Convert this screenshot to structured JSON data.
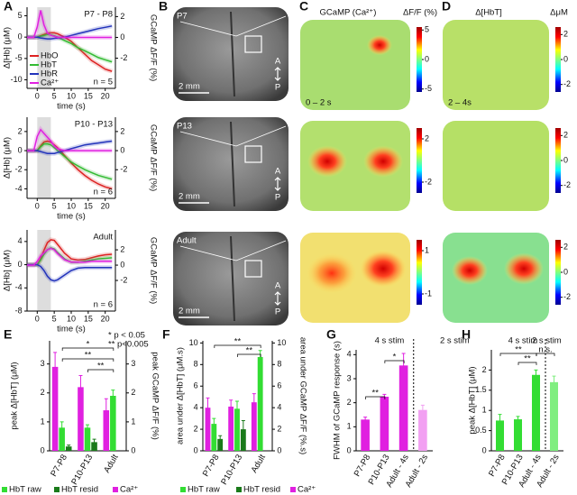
{
  "panel_labels": [
    "A",
    "B",
    "C",
    "D",
    "E",
    "F",
    "G",
    "H"
  ],
  "chart_data": [
    {
      "type": "line",
      "title": "P7 - P8",
      "annotation": "n = 5",
      "xlabel": "time (s)",
      "ylabel": "Δ[Hb] (μM)",
      "y2label": "GCaMP ΔF/F (%)",
      "shade": [
        0,
        4
      ],
      "x": [
        -3,
        -1,
        0,
        1,
        2,
        3,
        4,
        5,
        6,
        8,
        10,
        12,
        14,
        16,
        18,
        20,
        22
      ],
      "xlim": [
        -3,
        23
      ],
      "xticks": [
        0,
        5,
        10,
        15,
        20
      ],
      "ylim": [
        -12,
        7
      ],
      "yticks": [
        5,
        0,
        -5,
        -10
      ],
      "y2lim": [
        -4.9,
        2.9
      ],
      "y2ticks": [
        2,
        0,
        -2
      ],
      "legend": "lower left",
      "series": [
        {
          "name": "HbO",
          "color": "#dd2222",
          "values": [
            0,
            0,
            0,
            0.3,
            0.6,
            0.9,
            1,
            1,
            0.8,
            0,
            -1,
            -2.5,
            -4,
            -5.5,
            -6.5,
            -7.5,
            -8
          ]
        },
        {
          "name": "HbT",
          "color": "#33bb33",
          "values": [
            0,
            0,
            0,
            0.2,
            0.4,
            0.6,
            0.5,
            0.3,
            0,
            -0.8,
            -1.5,
            -2.5,
            -3.2,
            -4,
            -4.8,
            -5.3,
            -5.8
          ]
        },
        {
          "name": "HbR",
          "color": "#2233bb",
          "values": [
            0,
            0,
            0,
            -0.2,
            -0.3,
            -0.4,
            -0.4,
            -0.3,
            -0.2,
            0,
            0.4,
            0.8,
            1.2,
            1.6,
            2,
            2.3,
            2.6
          ]
        },
        {
          "name": "Ca²⁺",
          "color": "#e020e0",
          "axis": "y2",
          "values": [
            0,
            0,
            1,
            2.6,
            1.2,
            0.4,
            0.2,
            0.1,
            0,
            0,
            0,
            0,
            0,
            0,
            0,
            0,
            0
          ]
        }
      ]
    },
    {
      "type": "line",
      "title": "P10 - P13",
      "annotation": "n = 6",
      "xlabel": "time (s)",
      "ylabel": "Δ[Hb] (μM)",
      "y2label": "GCaMP ΔF/F (%)",
      "shade": [
        0,
        4
      ],
      "x": [
        -3,
        -1,
        0,
        1,
        2,
        3,
        4,
        5,
        6,
        8,
        10,
        12,
        14,
        16,
        18,
        20,
        22
      ],
      "xlim": [
        -3,
        23
      ],
      "xticks": [
        0,
        5,
        10,
        15,
        20
      ],
      "ylim": [
        -5,
        3.5
      ],
      "yticks": [
        2,
        0,
        -2,
        -4
      ],
      "y2lim": [
        -5,
        3.5
      ],
      "y2ticks": [
        2,
        0,
        -2
      ],
      "series": [
        {
          "color": "#dd2222",
          "values": [
            0,
            0,
            0,
            0.5,
            0.9,
            1,
            0.9,
            0.6,
            0.3,
            -0.5,
            -1.3,
            -2,
            -2.6,
            -3.1,
            -3.5,
            -3.8,
            -4
          ]
        },
        {
          "color": "#33bb33",
          "values": [
            0,
            0,
            0,
            0.4,
            0.7,
            0.7,
            0.6,
            0.3,
            0,
            -0.6,
            -1.2,
            -1.6,
            -2,
            -2.3,
            -2.6,
            -2.8,
            -3
          ]
        },
        {
          "color": "#2233bb",
          "values": [
            0,
            0,
            0,
            -0.1,
            -0.2,
            -0.3,
            -0.3,
            -0.3,
            -0.2,
            0,
            0.2,
            0.4,
            0.6,
            0.7,
            0.8,
            0.9,
            1
          ]
        },
        {
          "color": "#e020e0",
          "axis": "y2",
          "values": [
            0,
            0,
            1.5,
            2.2,
            1.8,
            1.4,
            1,
            0.5,
            0.2,
            0,
            0,
            0,
            0,
            0,
            0,
            0,
            0
          ]
        }
      ]
    },
    {
      "type": "line",
      "title": "Adult",
      "annotation": "n = 6",
      "xlabel": "time (s)",
      "ylabel": "Δ[Hb] (μM)",
      "y2label": "GCaMP ΔF/F (%)",
      "shade": [
        0,
        4
      ],
      "x": [
        -3,
        -1,
        0,
        1,
        2,
        3,
        4,
        5,
        6,
        8,
        10,
        12,
        14,
        16,
        18,
        20,
        22
      ],
      "xlim": [
        -3,
        23
      ],
      "xticks": [
        0,
        5,
        10,
        15,
        20
      ],
      "ylim": [
        -8,
        6
      ],
      "yticks": [
        4,
        0,
        -4,
        -8
      ],
      "y2lim": [
        -6,
        4.6
      ],
      "y2ticks": [
        2,
        0,
        -2
      ],
      "series": [
        {
          "color": "#dd2222",
          "values": [
            0,
            0,
            0,
            1,
            2.5,
            3.8,
            4.3,
            4.2,
            3.5,
            2,
            1,
            0.8,
            0.9,
            1.2,
            1.5,
            1.7,
            1.8
          ]
        },
        {
          "color": "#33bb33",
          "values": [
            0,
            0,
            0,
            0.8,
            1.8,
            2.6,
            2.9,
            2.7,
            2.1,
            1,
            0.4,
            0.4,
            0.6,
            0.8,
            1,
            1.1,
            1.2
          ]
        },
        {
          "color": "#2233bb",
          "values": [
            0,
            0,
            0,
            -0.3,
            -1,
            -2,
            -2.6,
            -2.8,
            -2.6,
            -1.8,
            -1,
            -0.6,
            -0.5,
            -0.5,
            -0.5,
            -0.5,
            -0.5
          ]
        },
        {
          "color": "#e020e0",
          "axis": "y2",
          "values": [
            0,
            0,
            0.5,
            1.2,
            1.6,
            2,
            2.2,
            2,
            1.5,
            0.7,
            0.4,
            0.4,
            0.4,
            0.5,
            0.5,
            0.5,
            0.5
          ]
        }
      ]
    },
    {
      "type": "bar",
      "categories": [
        "P7-P8",
        "P10-P13",
        "Adult"
      ],
      "ylabel": "peak Δ[HbT] (μM)",
      "y2label": "peak GCaMP ΔF/F (%)",
      "ylim": [
        0,
        3.8
      ],
      "yticks": [
        0,
        1,
        2,
        3
      ],
      "y2lim": [
        0,
        3.8
      ],
      "y2ticks": [
        0,
        1,
        2,
        3
      ],
      "annotations": [
        "* p < 0.05",
        "** p<0.005"
      ],
      "significance": [
        "*",
        "**",
        "**"
      ],
      "series": [
        {
          "name": "HbT raw",
          "color": "#33dd33",
          "values": [
            0.8,
            0.8,
            1.9
          ],
          "errors": [
            0.2,
            0.1,
            0.2
          ]
        },
        {
          "name": "HbT resid",
          "color": "#1a7a1a",
          "values": [
            0.15,
            0.3,
            null
          ],
          "errors": [
            0.05,
            0.1,
            null
          ]
        },
        {
          "name": "Ca²⁺",
          "color": "#e020e0",
          "axis": "y2",
          "values": [
            2.9,
            2.2,
            1.4
          ],
          "errors": [
            0.5,
            0.4,
            0.4
          ]
        }
      ]
    },
    {
      "type": "bar",
      "categories": [
        "P7-P8",
        "P10-P13",
        "Adult"
      ],
      "ylabel": "area under Δ[HbT] (μM.s)",
      "y2label": "area under GCaMP ΔF/F (%.s)",
      "ylim": [
        0,
        10.2
      ],
      "yticks": [
        0,
        2,
        4,
        6,
        8,
        10
      ],
      "y2lim": [
        0,
        10.2
      ],
      "y2ticks": [
        0,
        2,
        4,
        6,
        8,
        10
      ],
      "significance": [
        "**",
        "**"
      ],
      "series": [
        {
          "name": "HbT raw",
          "color": "#33dd33",
          "values": [
            2.5,
            3.9,
            8.7
          ],
          "errors": [
            0.5,
            0.7,
            0.6
          ]
        },
        {
          "name": "HbT resid",
          "color": "#1a7a1a",
          "values": [
            1.1,
            2.0,
            null
          ],
          "errors": [
            0.3,
            0.8,
            null
          ]
        },
        {
          "name": "Ca²⁺",
          "color": "#e020e0",
          "axis": "y2",
          "values": [
            4.0,
            4.1,
            4.5
          ],
          "errors": [
            0.9,
            0.6,
            0.8
          ]
        }
      ]
    },
    {
      "type": "bar",
      "categories": [
        "P7-P8",
        "P10-P13",
        "Adult - 4s",
        "Adult - 2s"
      ],
      "ylabel": "FWHM of GCaMP response (s)",
      "ylim": [
        0,
        4.2
      ],
      "yticks": [
        0,
        1,
        2,
        3,
        4
      ],
      "annotations": [
        "4 s stim",
        "2 s stim"
      ],
      "significance": [
        "**",
        "*"
      ],
      "values": [
        1.3,
        2.25,
        3.55,
        1.7
      ],
      "errors": [
        0.1,
        0.1,
        0.5,
        0.2
      ],
      "colors": [
        "#e020e0",
        "#e020e0",
        "#e020e0",
        "#f2a0f2"
      ]
    },
    {
      "type": "bar",
      "categories": [
        "P7-P8",
        "P10-P13",
        "Adult - 4s",
        "Adult - 2s"
      ],
      "ylabel": "peak Δ[HbT] (μM)",
      "ylim": [
        0,
        2.5
      ],
      "yticks": [
        0,
        0.5,
        1,
        1.5,
        2
      ],
      "annotations": [
        "4 s stim",
        "2 s stim"
      ],
      "significance": [
        "**",
        "**",
        "n.s."
      ],
      "values": [
        0.75,
        0.78,
        1.88,
        1.7
      ],
      "errors": [
        0.15,
        0.07,
        0.12,
        0.15
      ],
      "colors": [
        "#33dd33",
        "#33dd33",
        "#33dd33",
        "#80ee80"
      ]
    }
  ],
  "images": {
    "B": [
      {
        "label": "P7",
        "scale": "2 mm",
        "ant": "A",
        "post": "P"
      },
      {
        "label": "P13",
        "scale": "2 mm",
        "ant": "A",
        "post": "P"
      },
      {
        "label": "Adult",
        "scale": "2 mm",
        "ant": "A",
        "post": "P"
      }
    ],
    "C": {
      "title": "GCaMP (Ca²⁺)",
      "unit": "ΔF/F (%)",
      "window": "0 – 2 s",
      "colorbars": [
        {
          "lim": [
            -5.5,
            5.5
          ],
          "ticks": [
            5,
            0,
            -5
          ]
        },
        {
          "lim": [
            -3,
            3
          ],
          "ticks": [
            2,
            -2
          ]
        },
        {
          "lim": [
            -1.5,
            1.5
          ],
          "ticks": [
            1,
            -1
          ]
        }
      ]
    },
    "D": {
      "title": "Δ[HbT]",
      "unit": "ΔμM",
      "window": "2 – 4s",
      "colorbars": [
        {
          "lim": [
            -2.6,
            2.6
          ],
          "ticks": [
            2,
            0,
            -2
          ]
        },
        {
          "lim": [
            -2.6,
            2.6
          ],
          "ticks": [
            2,
            0,
            -2
          ]
        },
        {
          "lim": [
            -2.6,
            2.6
          ],
          "ticks": [
            2,
            0,
            -2
          ]
        }
      ]
    }
  }
}
